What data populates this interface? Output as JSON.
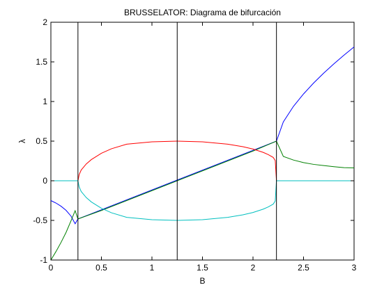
{
  "chart_data": {
    "type": "line",
    "title": "BRUSSELATOR: Diagrama de bifurcación",
    "xlabel": "B",
    "ylabel": "λ",
    "xlim": [
      0,
      3
    ],
    "ylim": [
      -1,
      2
    ],
    "xticks": [
      "0",
      "0.5",
      "1",
      "1.5",
      "2",
      "2.5",
      "3"
    ],
    "yticks": [
      "-1",
      "-0.5",
      "0",
      "0.5",
      "1",
      "1.5",
      "2"
    ],
    "grid": false,
    "vlines": [
      0.2679,
      1.25,
      2.2321
    ],
    "series": [
      {
        "color": "#0000ff",
        "x": [
          0,
          0.05,
          0.1,
          0.15,
          0.2,
          0.24,
          0.2679,
          2.2321,
          2.3,
          2.4,
          2.5,
          2.6,
          2.7,
          2.8,
          2.9,
          3.0
        ],
        "y": [
          -0.25,
          -0.2808,
          -0.3209,
          -0.3727,
          -0.4472,
          -0.5426,
          -0.4821,
          0.5,
          0.7427,
          0.9386,
          1.0954,
          1.2333,
          1.3586,
          1.475,
          1.5844,
          1.6882
        ]
      },
      {
        "color": "#008000",
        "x": [
          0,
          0.05,
          0.1,
          0.15,
          0.2,
          0.24,
          0.2679,
          0.5,
          1.0,
          1.5,
          2.0,
          2.2321,
          2.3,
          2.4,
          2.5,
          2.6,
          2.7,
          2.8,
          2.9,
          3.0
        ],
        "y": [
          -1.0,
          -0.8942,
          -0.7791,
          -0.6523,
          -0.5028,
          -0.3774,
          -0.4821,
          -0.375,
          -0.125,
          0.125,
          0.375,
          0.5,
          0.3073,
          0.2614,
          0.2296,
          0.2067,
          0.1914,
          0.178,
          0.1656,
          0.1618
        ]
      },
      {
        "color": "#ff0000",
        "x": [
          0.2679,
          0.28,
          0.3,
          0.35,
          0.4,
          0.5,
          0.6,
          0.75,
          1.0,
          1.25,
          1.5,
          1.75,
          1.9,
          2.0,
          2.1,
          2.15,
          2.2,
          2.22,
          2.2321
        ],
        "y": [
          0.0,
          0.0771,
          0.1356,
          0.2119,
          0.2669,
          0.3472,
          0.4041,
          0.4617,
          0.4907,
          0.5,
          0.4907,
          0.4617,
          0.4297,
          0.4,
          0.3586,
          0.3308,
          0.2946,
          0.2554,
          0.0
        ]
      },
      {
        "color": "#00bfbf",
        "x": [
          0,
          0.1,
          0.2,
          0.25,
          0.2679,
          0.28,
          0.3,
          0.35,
          0.4,
          0.5,
          0.6,
          0.75,
          1.0,
          1.25,
          1.5,
          1.75,
          1.9,
          2.0,
          2.1,
          2.15,
          2.2,
          2.22,
          2.2321,
          2.3,
          2.5,
          2.75,
          3.0
        ],
        "y": [
          0.0,
          0.0,
          0.0,
          0.0,
          0.0,
          -0.0771,
          -0.1356,
          -0.2119,
          -0.2669,
          -0.3472,
          -0.4041,
          -0.4617,
          -0.4907,
          -0.5,
          -0.4907,
          -0.4617,
          -0.4297,
          -0.4,
          -0.3586,
          -0.3308,
          -0.2946,
          -0.2554,
          0.0,
          0.0,
          0.0,
          0.0,
          0.0
        ]
      }
    ]
  }
}
